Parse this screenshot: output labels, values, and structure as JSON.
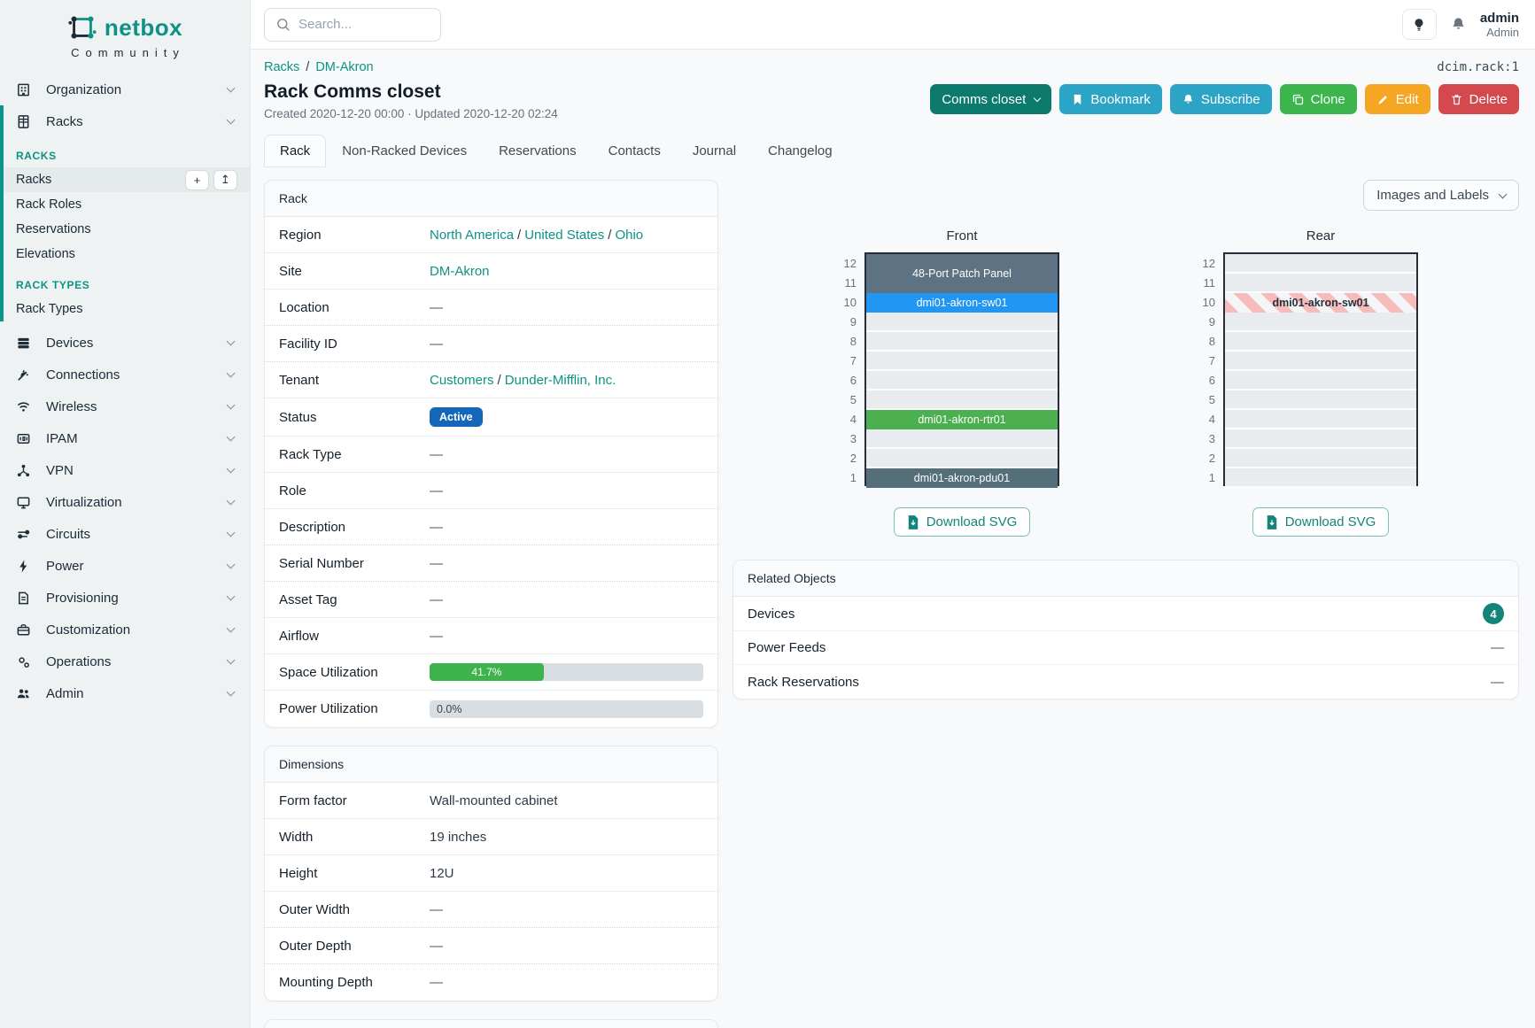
{
  "brand": {
    "name": "netbox",
    "tagline": "Community"
  },
  "topbar": {
    "search_placeholder": "Search..."
  },
  "user": {
    "name": "admin",
    "role": "Admin"
  },
  "breadcrumb": {
    "racks": "Racks",
    "site": "DM-Akron"
  },
  "object_ref": "dcim.rack:1",
  "page": {
    "title": "Rack Comms closet",
    "meta": "Created 2020-12-20 00:00 · Updated 2020-12-20 02:24"
  },
  "actions": {
    "rack_select": "Comms closet",
    "bookmark": "Bookmark",
    "subscribe": "Subscribe",
    "clone": "Clone",
    "edit": "Edit",
    "delete": "Delete"
  },
  "tabs": {
    "rack": "Rack",
    "non_racked": "Non-Racked Devices",
    "reservations": "Reservations",
    "contacts": "Contacts",
    "journal": "Journal",
    "changelog": "Changelog"
  },
  "sidebar": {
    "groups_top": [
      {
        "label": "Organization"
      },
      {
        "label": "Racks"
      }
    ],
    "racks_header": "RACKS",
    "racks_items": [
      {
        "label": "Racks",
        "active": true
      },
      {
        "label": "Rack Roles"
      },
      {
        "label": "Reservations"
      },
      {
        "label": "Elevations"
      }
    ],
    "rack_types_header": "RACK TYPES",
    "rack_types_items": [
      {
        "label": "Rack Types"
      }
    ],
    "groups": [
      {
        "label": "Devices"
      },
      {
        "label": "Connections"
      },
      {
        "label": "Wireless"
      },
      {
        "label": "IPAM"
      },
      {
        "label": "VPN"
      },
      {
        "label": "Virtualization"
      },
      {
        "label": "Circuits"
      },
      {
        "label": "Power"
      },
      {
        "label": "Provisioning"
      },
      {
        "label": "Customization"
      },
      {
        "label": "Operations"
      },
      {
        "label": "Admin"
      }
    ]
  },
  "rack_panel": {
    "title": "Rack",
    "labels": {
      "region": "Region",
      "site": "Site",
      "location": "Location",
      "facility_id": "Facility ID",
      "tenant": "Tenant",
      "status": "Status",
      "rack_type": "Rack Type",
      "role": "Role",
      "description": "Description",
      "serial": "Serial Number",
      "asset_tag": "Asset Tag",
      "airflow": "Airflow",
      "space_util": "Space Utilization",
      "power_util": "Power Utilization"
    },
    "values": {
      "region": [
        "North America",
        "United States",
        "Ohio"
      ],
      "site": "DM-Akron",
      "location": "—",
      "facility_id": "—",
      "tenant": [
        "Customers",
        "Dunder-Mifflin, Inc."
      ],
      "status": "Active",
      "rack_type": "—",
      "role": "—",
      "description": "—",
      "serial": "—",
      "asset_tag": "—",
      "airflow": "—",
      "space_util": "41.7%",
      "space_util_pct": 41.7,
      "power_util": "0.0%",
      "power_util_pct": 0
    }
  },
  "dimensions_panel": {
    "title": "Dimensions",
    "labels": {
      "form_factor": "Form factor",
      "width": "Width",
      "height": "Height",
      "outer_width": "Outer Width",
      "outer_depth": "Outer Depth",
      "mounting_depth": "Mounting Depth"
    },
    "values": {
      "form_factor": "Wall-mounted cabinet",
      "width": "19 inches",
      "height": "12U",
      "outer_width": "—",
      "outer_depth": "—",
      "mounting_depth": "—"
    }
  },
  "elevations": {
    "toggle_label": "Images and Labels",
    "download_label": "Download SVG",
    "units": [
      12,
      11,
      10,
      9,
      8,
      7,
      6,
      5,
      4,
      3,
      2,
      1
    ],
    "front": {
      "title": "Front",
      "devices": [
        {
          "name": "48-Port Patch Panel",
          "top_unit": 12,
          "u_height": 2,
          "color": "#5d7283",
          "text_color": "#ffffff"
        },
        {
          "name": "dmi01-akron-sw01",
          "top_unit": 10,
          "u_height": 1,
          "color": "#2196f3",
          "text_color": "#ffffff"
        },
        {
          "name": "dmi01-akron-rtr01",
          "top_unit": 4,
          "u_height": 1,
          "color": "#4caf50",
          "text_color": "#ffffff"
        },
        {
          "name": "dmi01-akron-pdu01",
          "top_unit": 1,
          "u_height": 1,
          "color": "#546e7a",
          "text_color": "#ffffff"
        }
      ]
    },
    "rear": {
      "title": "Rear",
      "devices": [
        {
          "name": "dmi01-akron-sw01",
          "top_unit": 10,
          "u_height": 1,
          "striped": true,
          "text_color": "#27323c"
        }
      ]
    }
  },
  "related_objects": {
    "title": "Related Objects",
    "rows": [
      {
        "label": "Devices",
        "badge": "4"
      },
      {
        "label": "Power Feeds",
        "value": "—"
      },
      {
        "label": "Rack Reservations",
        "value": "—"
      }
    ]
  },
  "colors": {
    "primary_teal": "#0e9285",
    "info_cyan": "#2ba4c6",
    "success_green": "#3cb54c",
    "warning_orange": "#f5a623",
    "danger_red": "#d4494e",
    "status_blue": "#1467b8",
    "progress_green": "#3eb24b"
  }
}
